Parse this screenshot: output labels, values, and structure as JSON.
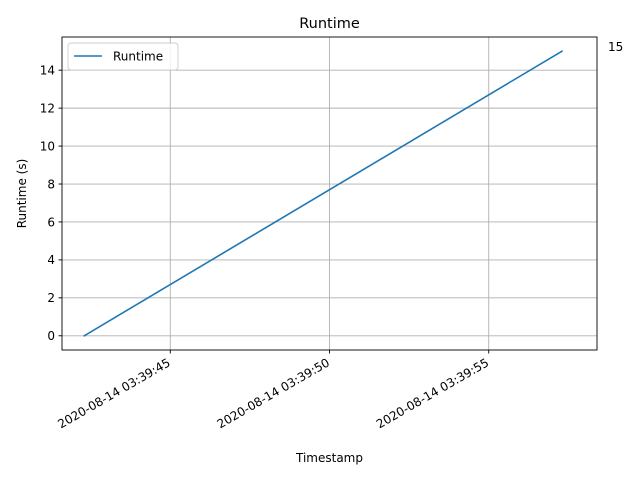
{
  "chart_data": {
    "type": "line",
    "title": "Runtime",
    "xlabel": "Timestamp",
    "ylabel": "Runtime (s)",
    "x_tick_labels": [
      "2020-08-14 03:39:45",
      "2020-08-14 03:39:50",
      "2020-08-14 03:39:55"
    ],
    "y_ticks": [
      0,
      2,
      4,
      6,
      8,
      10,
      12,
      14
    ],
    "y_tick_labels": [
      "0",
      "2",
      "4",
      "6",
      "8",
      "10",
      "12",
      "14"
    ],
    "xlim": [
      "2020-08-14 03:39:41.6",
      "2020-08-14 03:39:58.4"
    ],
    "ylim": [
      -0.75,
      15.75
    ],
    "grid": true,
    "legend_position": "upper left",
    "annotation": {
      "text": "15"
    },
    "series": [
      {
        "name": "Runtime",
        "color": "#1f77b4",
        "x": [
          "2020-08-14 03:39:42.3",
          "2020-08-14 03:39:57.3"
        ],
        "values": [
          0,
          15
        ]
      }
    ]
  }
}
